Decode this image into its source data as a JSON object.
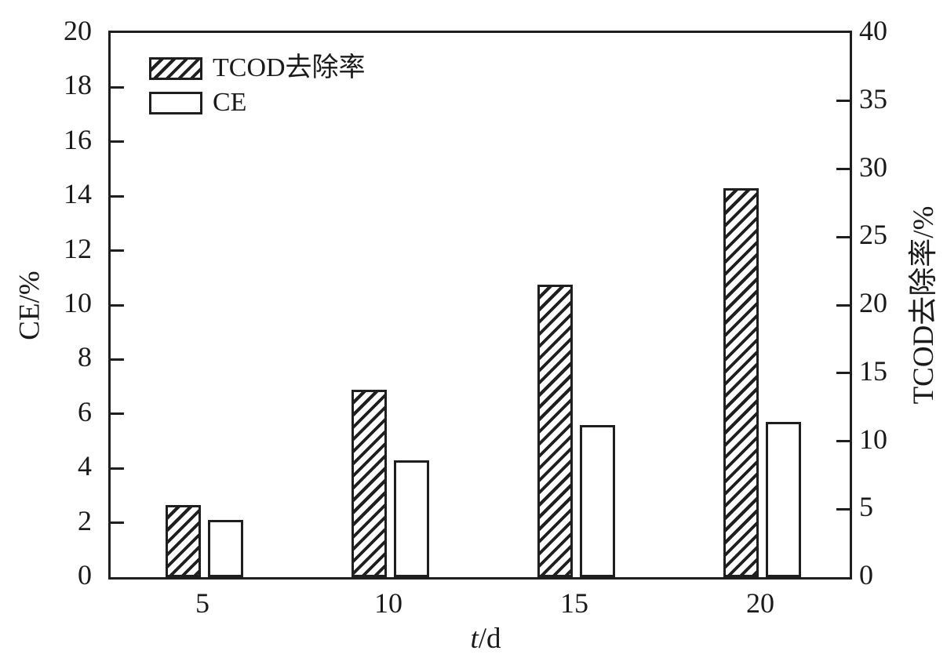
{
  "chart_data": {
    "type": "bar",
    "title": "",
    "categories": [
      "5",
      "10",
      "15",
      "20"
    ],
    "xlabel": "t/d",
    "xlabel_var": "t",
    "xlabel_unit": "/d",
    "series": [
      {
        "name": "TCOD去除率",
        "axis": "right",
        "style": "hatched",
        "values": [
          5.3,
          13.8,
          21.5,
          28.6
        ]
      },
      {
        "name": "CE",
        "axis": "left",
        "style": "open",
        "values": [
          2.1,
          4.3,
          5.6,
          5.7
        ]
      }
    ],
    "left_axis": {
      "label": "CE/%",
      "min": 0,
      "max": 20,
      "ticks": [
        0,
        2,
        4,
        6,
        8,
        10,
        12,
        14,
        16,
        18,
        20
      ]
    },
    "right_axis": {
      "label": "TCOD去除率/%",
      "min": 0,
      "max": 40,
      "ticks": [
        0,
        5,
        10,
        15,
        20,
        25,
        30,
        35,
        40
      ]
    },
    "legend": [
      {
        "label": "TCOD去除率",
        "swatch": "hatched"
      },
      {
        "label": "CE",
        "swatch": "open"
      }
    ],
    "grid": false,
    "legend_position": "top-left-inside",
    "colors": {
      "ink": "#1a1a1a",
      "bar_fill": "#ffffff",
      "background": "#ffffff"
    }
  }
}
